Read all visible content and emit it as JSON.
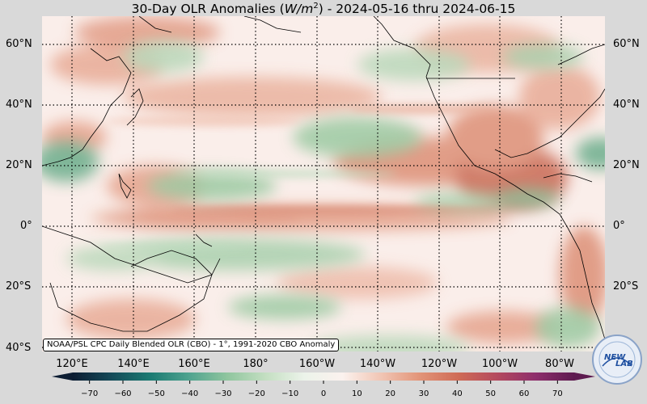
{
  "title_prefix": "30-Day OLR Anomalies (",
  "title_unit_base": "W/m",
  "title_unit_exp": "2",
  "title_suffix": ") - 2024-05-16 thru 2024-06-15",
  "lat_labels": [
    "60°N",
    "40°N",
    "20°N",
    "0°",
    "20°S",
    "40°S"
  ],
  "lon_labels": [
    "120°E",
    "140°E",
    "160°E",
    "180°",
    "160°W",
    "140°W",
    "120°W",
    "100°W",
    "80°W"
  ],
  "credit": "NOAA/PSL CPC Daily Blended OLR (CBO) - 1°, 1991-2020 CBO Anomaly",
  "colorbar": {
    "ticks": [
      "−70",
      "−60",
      "−50",
      "−40",
      "−30",
      "−20",
      "−10",
      "0",
      "10",
      "20",
      "30",
      "40",
      "50",
      "60",
      "70"
    ],
    "colors": [
      "#0c1d33",
      "#144a58",
      "#1a7a72",
      "#4fa38f",
      "#8fc59e",
      "#c4dfc2",
      "#ecf3ea",
      "#fbf2ee",
      "#f1c5b4",
      "#e29478",
      "#cf6b56",
      "#b44a5e",
      "#8e2f6c",
      "#5e1b50"
    ]
  },
  "logo": {
    "text_top": "NEW",
    "text_bottom": "LAB",
    "accent_color": "#1e4fa0"
  },
  "colors": {
    "ocean_base": "#faeeea",
    "positive_anomaly": "#dd8f76",
    "strong_positive": "#c96a55",
    "negative_anomaly": "#9ccaa3",
    "strong_negative": "#6cae8c"
  }
}
